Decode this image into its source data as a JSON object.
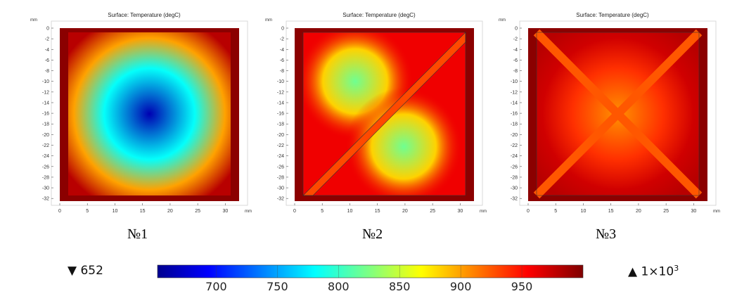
{
  "chart_data": {
    "type": "heatmap",
    "title": "Surface: Temperature (degC)",
    "x_unit": "mm",
    "y_unit": "mm",
    "xlim": [
      0,
      32.5
    ],
    "ylim": [
      -32.5,
      0
    ],
    "x_ticks": [
      0,
      5,
      10,
      15,
      20,
      25,
      30
    ],
    "y_ticks": [
      0,
      -2,
      -4,
      -6,
      -8,
      -10,
      -12,
      -14,
      -16,
      -18,
      -20,
      -22,
      -24,
      -26,
      -28,
      -30,
      -32
    ],
    "colorbar": {
      "min_label": "652",
      "max_label": "1×10",
      "max_exp": "3",
      "min": 652,
      "max": 1000,
      "ticks": [
        700,
        750,
        800,
        850,
        900,
        950
      ],
      "colormap": "rainbow"
    },
    "panels": [
      {
        "label": "№1",
        "geometry": "frame",
        "center_temp": 665,
        "edge_temp": 1000
      },
      {
        "label": "№2",
        "geometry": "frame-with-diagonal",
        "center_temp": 820,
        "edge_temp": 1000
      },
      {
        "label": "№3",
        "geometry": "frame-with-x-cross",
        "center_temp": 905,
        "edge_temp": 1000
      }
    ]
  }
}
